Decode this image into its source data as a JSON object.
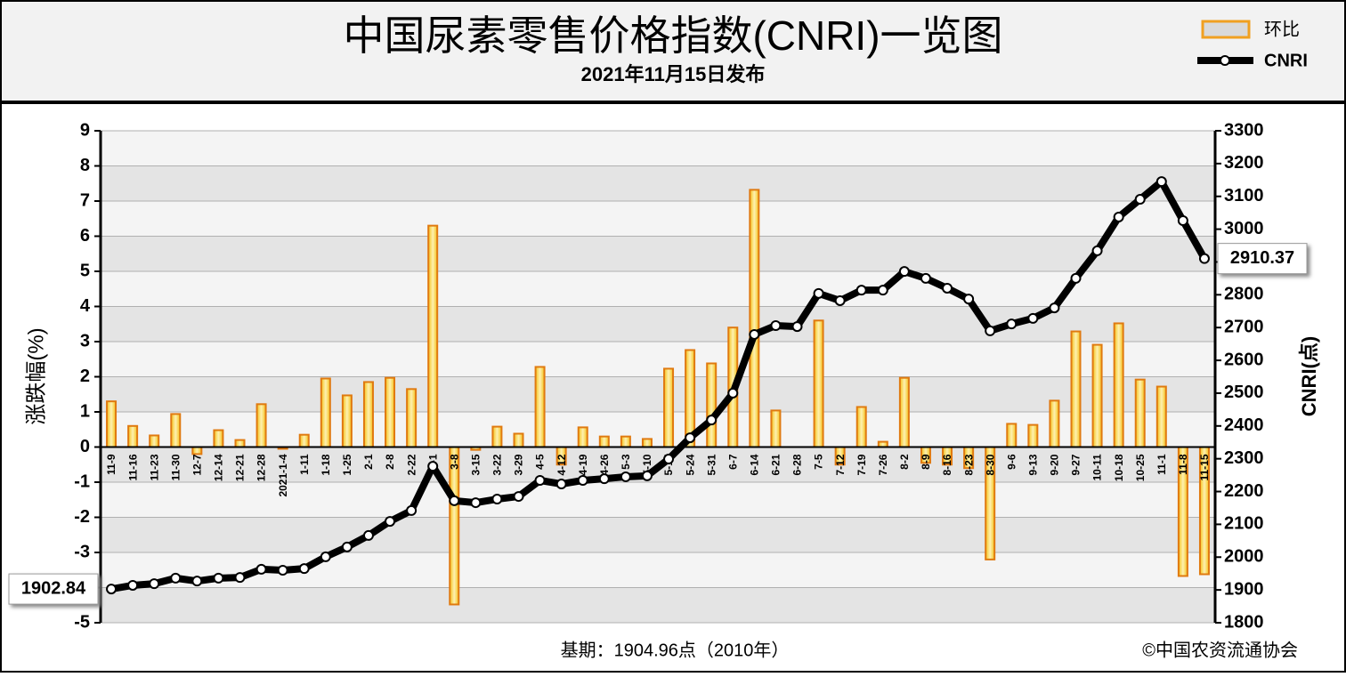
{
  "chart_data": {
    "type": "combo",
    "title": "中国尿素零售价格指数(CNRI)一览图",
    "subtitle": "2021年11月15日发布",
    "y_label": "涨跌幅(%)",
    "y2_label": "CNRI(点)",
    "annotations": [
      "基期：1904.96点（2010年）",
      "©中国农资流通协会"
    ],
    "legend": "upper right",
    "grid": true,
    "categories": [
      "11-9",
      "11-16",
      "11-23",
      "11-30",
      "12-7",
      "12-14",
      "12-21",
      "12-28",
      "2021-1-4",
      "1-11",
      "1-18",
      "1-25",
      "2-1",
      "2-8",
      "2-22",
      "3-1",
      "3-8",
      "3-15",
      "3-22",
      "3-29",
      "4-5",
      "4-12",
      "4-19",
      "4-26",
      "5-3",
      "5-10",
      "5-17",
      "5-24",
      "5-31",
      "6-7",
      "6-14",
      "6-21",
      "6-28",
      "7-5",
      "7-12",
      "7-19",
      "7-26",
      "8-2",
      "8-9",
      "8-16",
      "8-23",
      "8-30",
      "9-6",
      "9-13",
      "9-20",
      "9-27",
      "10-11",
      "10-18",
      "10-25",
      "11-1",
      "11-8",
      "11-15"
    ],
    "series": [
      {
        "name": "环比",
        "type": "bar",
        "color": "#e07a10",
        "axis": "y",
        "values": [
          1.3,
          0.6,
          0.33,
          0.94,
          -0.2,
          0.48,
          0.2,
          1.22,
          -0.05,
          0.35,
          1.95,
          1.47,
          1.85,
          1.97,
          1.65,
          6.3,
          -4.48,
          -0.08,
          0.58,
          0.38,
          2.28,
          -0.5,
          0.56,
          0.3,
          0.3,
          0.23,
          2.23,
          2.76,
          2.38,
          3.4,
          7.32,
          1.04,
          0,
          3.6,
          -0.5,
          1.14,
          0.15,
          1.97,
          -0.45,
          -0.5,
          -0.6,
          -3.2,
          0.66,
          0.63,
          1.32,
          3.29,
          2.91,
          3.52,
          1.92,
          1.72,
          -3.67,
          -3.62
        ]
      },
      {
        "name": "CNRI",
        "type": "line",
        "color": "#000000",
        "axis": "y2",
        "values": [
          1902.84,
          1914,
          1919,
          1936,
          1927,
          1936,
          1938,
          1963,
          1960,
          1965,
          2001,
          2031,
          2066,
          2109,
          2142,
          2277,
          2172,
          2166,
          2177,
          2185,
          2234,
          2223,
          2234,
          2239,
          2245,
          2248,
          2299,
          2364,
          2418,
          2500,
          2679,
          2706,
          2703,
          2804,
          2782,
          2814,
          2814,
          2871,
          2850,
          2820,
          2787,
          2690,
          2711,
          2728,
          2760,
          2850,
          2934,
          3037,
          3091,
          3145,
          3026,
          2910.37
        ]
      }
    ],
    "ylim": [
      -5,
      9
    ],
    "yticks": [
      -5,
      -4,
      -3,
      -2,
      -1,
      0,
      1,
      2,
      3,
      4,
      5,
      6,
      7,
      8,
      9
    ],
    "y2lim": [
      1800,
      3300
    ],
    "y2ticks": [
      1800,
      1900,
      2000,
      2100,
      2200,
      2300,
      2400,
      2500,
      2600,
      2700,
      2800,
      2900,
      3000,
      3100,
      3200,
      3300
    ]
  }
}
